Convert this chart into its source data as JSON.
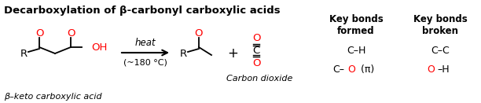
{
  "title": "Decarboxylation of β-carbonyl carboxylic acids",
  "bg_color": "#ffffff",
  "title_fontsize": 9.5,
  "fig_width": 6.12,
  "fig_height": 1.31,
  "dpi": 100,
  "reactant_label": "β–keto carboxylic acid",
  "product2_label": "Carbon dioxide",
  "arrow_label_top": "heat",
  "arrow_label_bottom": "(~180 °C)",
  "key_bonds_formed_title": "Key bonds\nformed",
  "key_bonds_broken_title": "Key bonds\nbroken",
  "black": "#000000",
  "red": "#ff0000"
}
